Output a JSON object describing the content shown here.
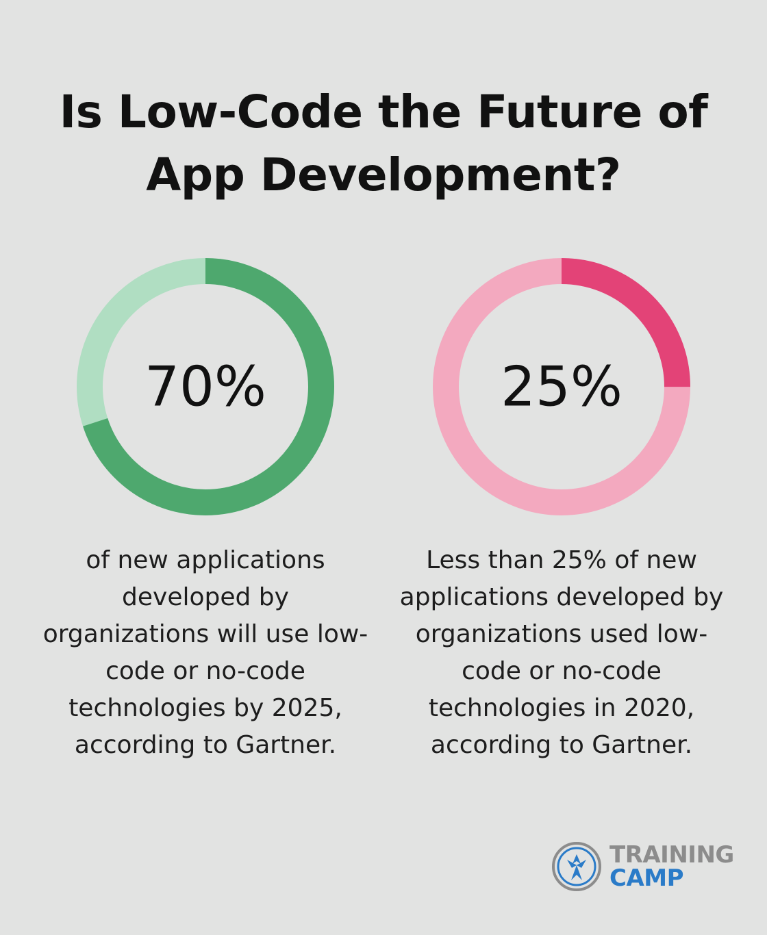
{
  "title_lines": [
    "Is Low-Code the Future of",
    "App Development?"
  ],
  "chart_data": [
    {
      "type": "pie",
      "value": 70,
      "label": "70%",
      "colors": {
        "filled": "#4ea86e",
        "track": "#b0dec2"
      },
      "description": [
        "of new applications",
        "developed by",
        "organizations will use low-",
        "code or no-code",
        "technologies by 2025,",
        "according to Gartner."
      ]
    },
    {
      "type": "pie",
      "value": 25,
      "label": "25%",
      "colors": {
        "filled": "#e34377",
        "track": "#f3a9bf"
      },
      "description": [
        "Less than 25% of new",
        "applications developed by",
        "organizations used low-",
        "code or no-code",
        "technologies in 2020,",
        "according to Gartner."
      ]
    }
  ],
  "logo": {
    "line1": "TRAINING",
    "line2": "CAMP",
    "icon": "training-camp-emblem-icon",
    "colors": {
      "gray": "#8c8c8c",
      "blue": "#2a7bc8"
    }
  }
}
